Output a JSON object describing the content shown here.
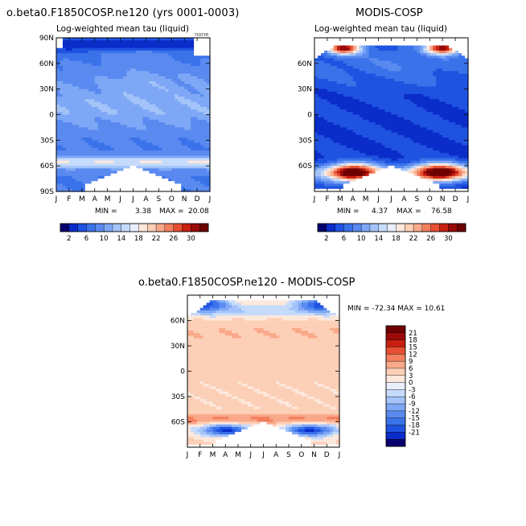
{
  "palette": {
    "colors": [
      "#08006e",
      "#0a2cc8",
      "#1f52e0",
      "#3a72ea",
      "#5a8af0",
      "#7ea8f6",
      "#a4c4f9",
      "#c6dbfb",
      "#e8eefc",
      "#fde8dc",
      "#fccfb7",
      "#f9a98a",
      "#f37f5e",
      "#e64f33",
      "#c82010",
      "#9a0a08",
      "#6e0000"
    ],
    "white": "#ffffff",
    "frame": "#000000"
  },
  "months": [
    "J",
    "F",
    "M",
    "A",
    "M",
    "J",
    "J",
    "A",
    "S",
    "O",
    "N",
    "D",
    "J"
  ],
  "chart_data": [
    {
      "type": "heatmap",
      "id": "model",
      "title": "o.beta0.F1850COSP.ne120 (yrs 0001-0003)",
      "subtitle": "Log-weighted mean tau (liquid)",
      "corner_label": "none",
      "x_ticks": [
        "J",
        "F",
        "M",
        "A",
        "M",
        "J",
        "J",
        "A",
        "S",
        "O",
        "N",
        "D",
        "J"
      ],
      "y_ticks": [
        "90N",
        "60N",
        "30N",
        "0",
        "30S",
        "60S",
        "90S"
      ],
      "y_range": [
        -90,
        90
      ],
      "x_range": [
        0,
        12
      ],
      "min_label": "MIN =",
      "min_value": "3.38",
      "max_label": "MAX =",
      "max_value": "20.08",
      "levels": [
        2,
        4,
        6,
        8,
        10,
        12,
        14,
        16,
        18,
        20,
        22,
        24,
        26,
        28,
        30
      ],
      "colorbar_labels": [
        "2",
        "6",
        "10",
        "14",
        "18",
        "22",
        "26",
        "30"
      ]
    },
    {
      "type": "heatmap",
      "id": "obs",
      "title": "MODIS-COSP",
      "subtitle": "Log-weighted mean tau (liquid)",
      "x_ticks": [
        "J",
        "F",
        "M",
        "A",
        "M",
        "J",
        "J",
        "A",
        "S",
        "O",
        "N",
        "D",
        "J"
      ],
      "y_ticks": [
        "60N",
        "30N",
        "0",
        "30S",
        "60S"
      ],
      "y_range": [
        -90,
        90
      ],
      "x_range": [
        0,
        12
      ],
      "min_label": "MIN =",
      "min_value": "4.37",
      "max_label": "MAX =",
      "max_value": "76.58",
      "levels": [
        2,
        4,
        6,
        8,
        10,
        12,
        14,
        16,
        18,
        20,
        22,
        24,
        26,
        28,
        30
      ],
      "colorbar_labels": [
        "2",
        "6",
        "10",
        "14",
        "18",
        "22",
        "26",
        "30"
      ]
    },
    {
      "type": "heatmap",
      "id": "diff",
      "title": "o.beta0.F1850COSP.ne120 - MODIS-COSP",
      "x_ticks": [
        "J",
        "F",
        "M",
        "A",
        "M",
        "J",
        "J",
        "A",
        "S",
        "O",
        "N",
        "D",
        "J"
      ],
      "y_ticks": [
        "60N",
        "30N",
        "0",
        "30S",
        "60S"
      ],
      "y_range": [
        -90,
        90
      ],
      "x_range": [
        0,
        12
      ],
      "min_max_text": "MIN = -72.34  MAX =  10.61",
      "levels": [
        -21,
        -18,
        -15,
        -12,
        -9,
        -6,
        -3,
        0,
        3,
        6,
        9,
        12,
        15,
        18,
        21
      ],
      "colorbar_labels": [
        "21",
        "18",
        "15",
        "12",
        "9",
        "6",
        "3",
        "0",
        "-3",
        "-6",
        "-9",
        "-12",
        "-15",
        "-18",
        "-21"
      ]
    }
  ]
}
